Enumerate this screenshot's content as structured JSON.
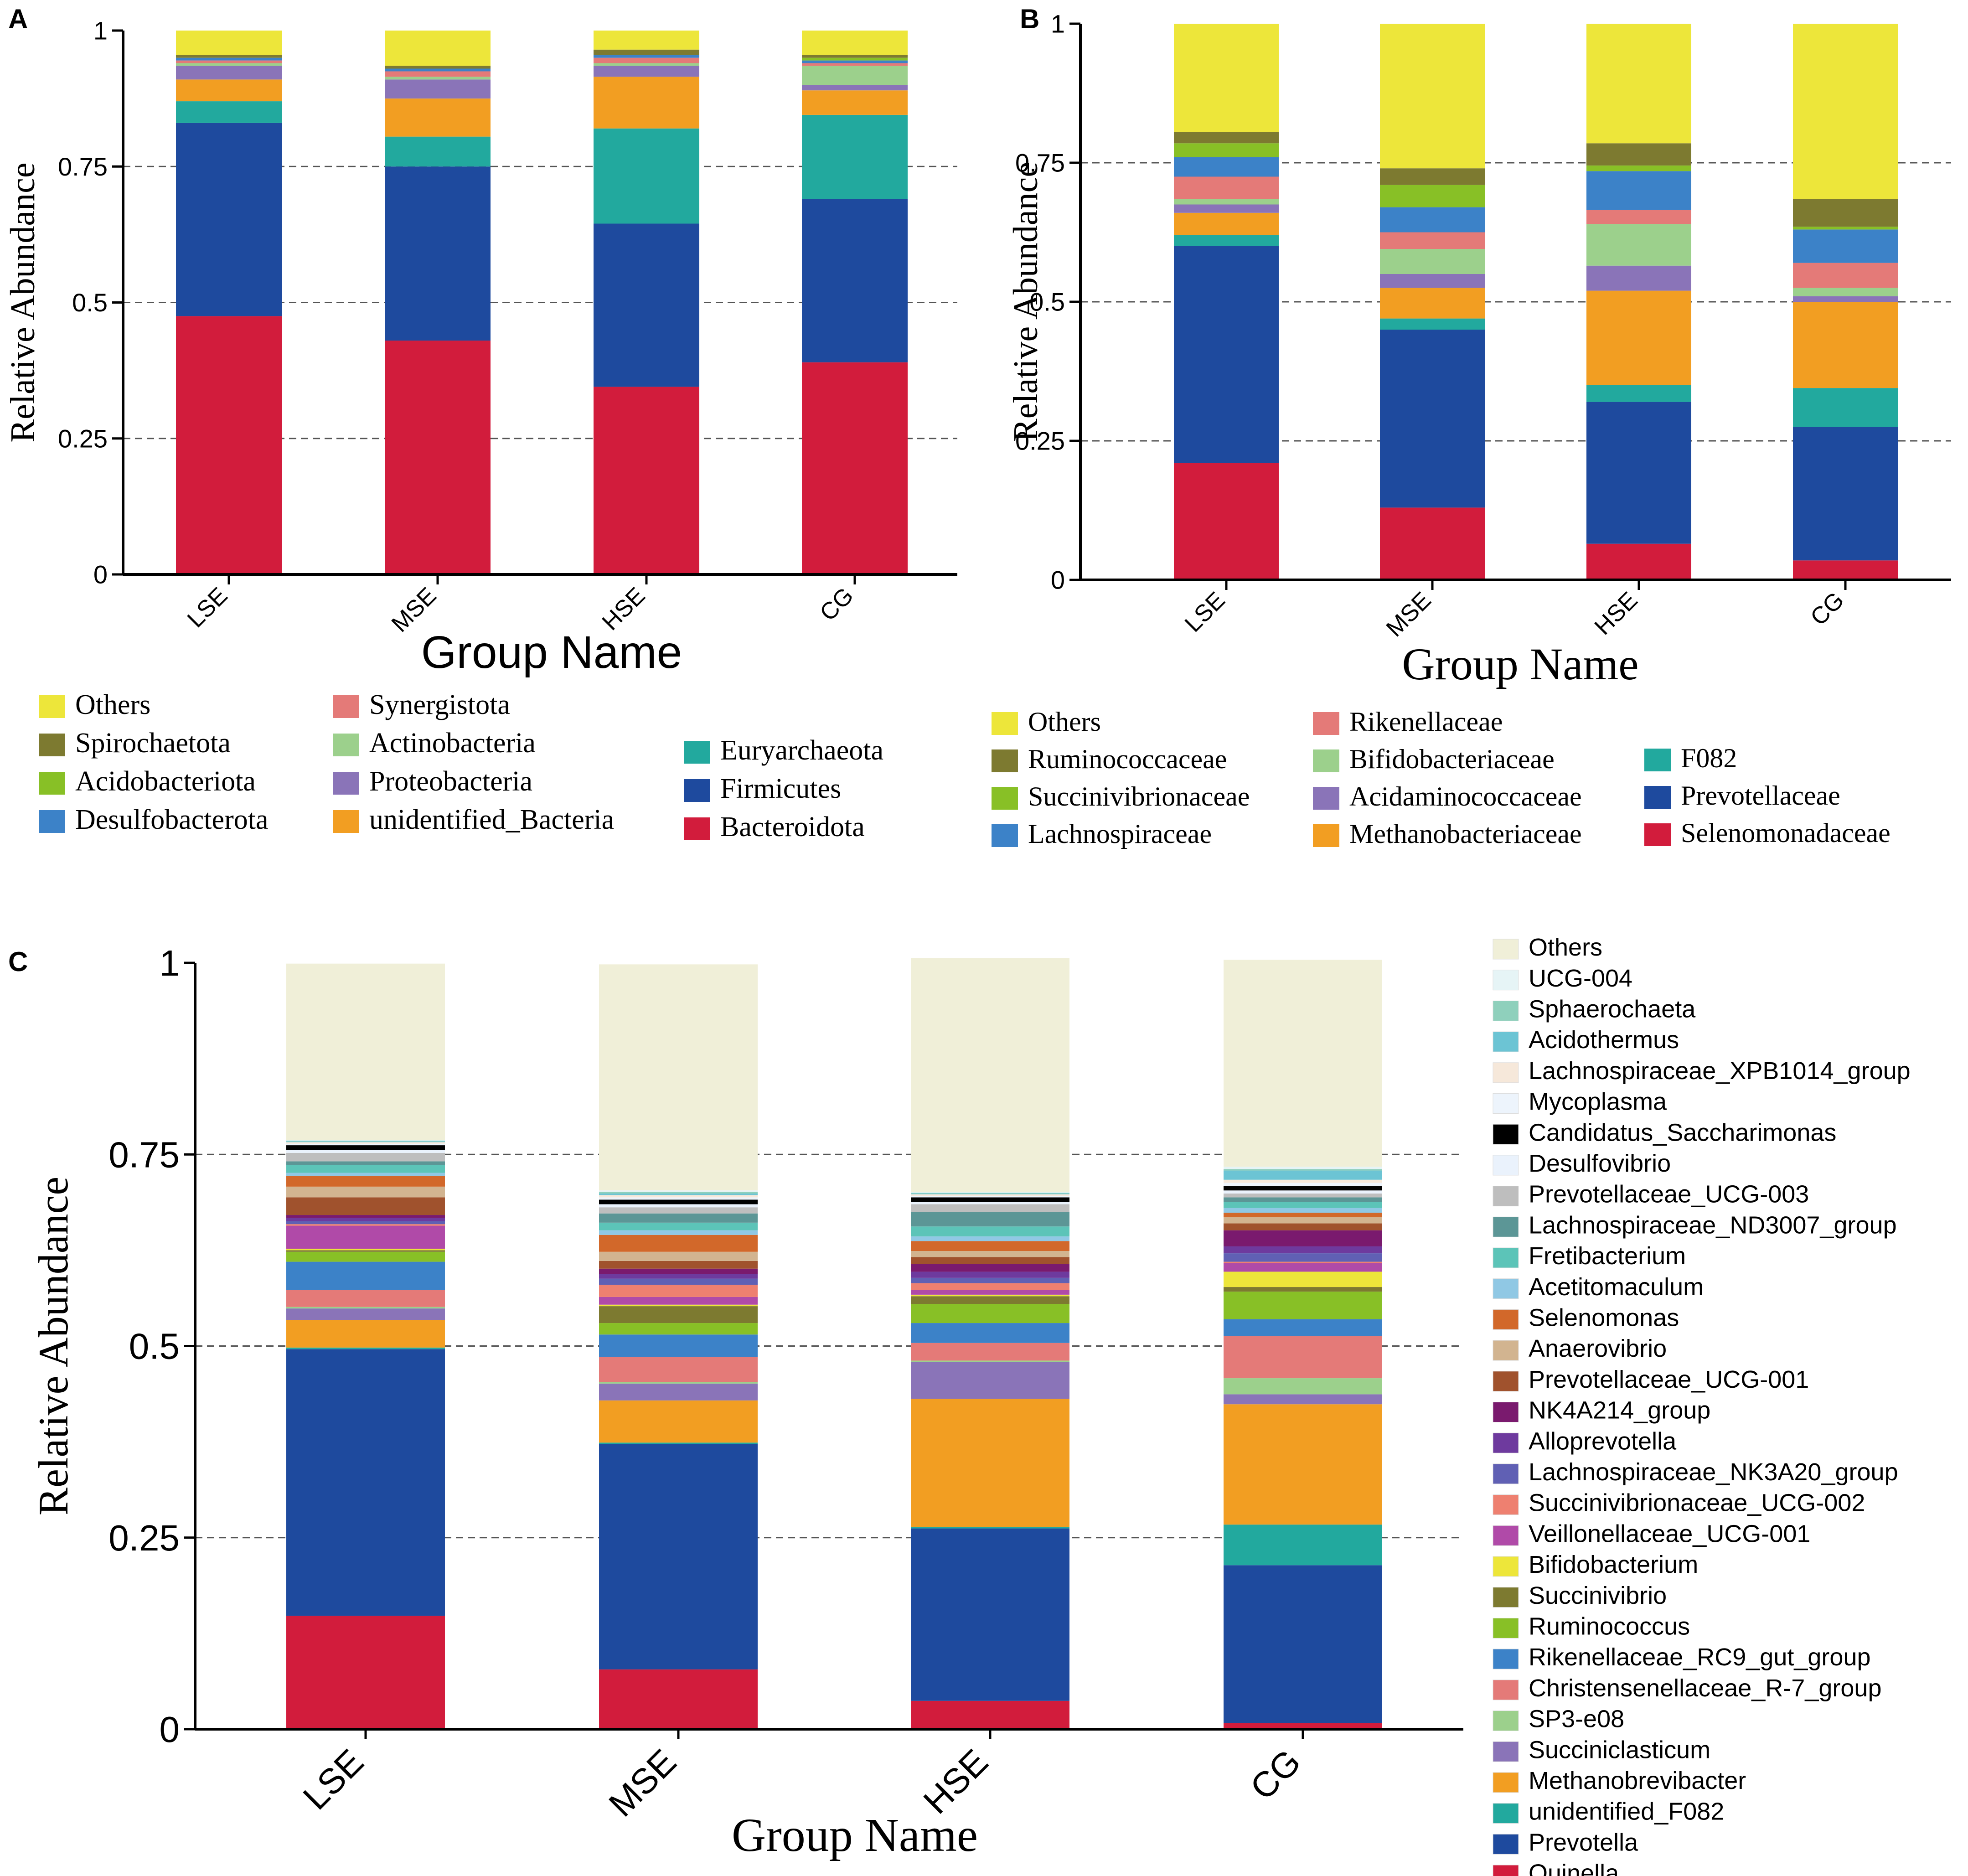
{
  "chart_data": [
    {
      "panel": "A",
      "type": "bar",
      "stacked": true,
      "categories": [
        "LSE",
        "MSE",
        "HSE",
        "CG"
      ],
      "xlabel": "Group Name",
      "ylabel": "Relative Abundance",
      "ylim": [
        0,
        1
      ],
      "yticks": [
        "0",
        "0.25",
        "0.5",
        "0.75",
        "1"
      ],
      "grid": "dashed-horizontal",
      "legend": [
        {
          "name": "Others",
          "color": "#EDE63A"
        },
        {
          "name": "Spirochaetota",
          "color": "#7D7A30"
        },
        {
          "name": "Acidobacteriota",
          "color": "#88C026"
        },
        {
          "name": "Desulfobacterota",
          "color": "#3C82C8"
        },
        {
          "name": "Synergistota",
          "color": "#E47A78"
        },
        {
          "name": "Actinobacteria",
          "color": "#9CD08C"
        },
        {
          "name": "Proteobacteria",
          "color": "#8A74B8"
        },
        {
          "name": "unidentified_Bacteria",
          "color": "#F29E22"
        },
        {
          "name": "Euryarchaeota",
          "color": "#22A99E"
        },
        {
          "name": "Firmicutes",
          "color": "#1E4A9E"
        },
        {
          "name": "Bacteroidota",
          "color": "#D21C3C"
        }
      ],
      "series": [
        {
          "name": "Bacteroidota",
          "color": "#D21C3C",
          "values": [
            0.475,
            0.43,
            0.345,
            0.39
          ]
        },
        {
          "name": "Firmicutes",
          "color": "#1E4A9E",
          "values": [
            0.355,
            0.32,
            0.3,
            0.3
          ]
        },
        {
          "name": "Euryarchaeota",
          "color": "#22A99E",
          "values": [
            0.04,
            0.055,
            0.175,
            0.155
          ]
        },
        {
          "name": "unidentified_Bacteria",
          "color": "#F29E22",
          "values": [
            0.04,
            0.07,
            0.095,
            0.045
          ]
        },
        {
          "name": "Proteobacteria",
          "color": "#8A74B8",
          "values": [
            0.025,
            0.035,
            0.02,
            0.01
          ]
        },
        {
          "name": "Actinobacteria",
          "color": "#9CD08C",
          "values": [
            0.005,
            0.005,
            0.005,
            0.035
          ]
        },
        {
          "name": "Synergistota",
          "color": "#E47A78",
          "values": [
            0.005,
            0.01,
            0.01,
            0.005
          ]
        },
        {
          "name": "Desulfobacterota",
          "color": "#3C82C8",
          "values": [
            0.005,
            0.005,
            0.005,
            0.005
          ]
        },
        {
          "name": "Acidobacteriota",
          "color": "#88C026",
          "values": [
            0.0,
            0.0,
            0.0,
            0.005
          ]
        },
        {
          "name": "Spirochaetota",
          "color": "#7D7A30",
          "values": [
            0.005,
            0.005,
            0.01,
            0.005
          ]
        },
        {
          "name": "Others",
          "color": "#EDE63A",
          "values": [
            0.045,
            0.065,
            0.035,
            0.045
          ]
        }
      ]
    },
    {
      "panel": "B",
      "type": "bar",
      "stacked": true,
      "categories": [
        "LSE",
        "MSE",
        "HSE",
        "CG"
      ],
      "xlabel": "Group Name",
      "ylabel": "Relative Abundance",
      "ylim": [
        0,
        1
      ],
      "yticks": [
        "0",
        "0.25",
        "0.5",
        "0.75",
        "1"
      ],
      "grid": "dashed-horizontal",
      "legend": [
        {
          "name": "Others",
          "color": "#EDE63A"
        },
        {
          "name": "Ruminococcaceae",
          "color": "#7D7A30"
        },
        {
          "name": "Succinivibrionaceae",
          "color": "#88C026"
        },
        {
          "name": "Lachnospiraceae",
          "color": "#3C82C8"
        },
        {
          "name": "Rikenellaceae",
          "color": "#E47A78"
        },
        {
          "name": "Bifidobacteriaceae",
          "color": "#9CD08C"
        },
        {
          "name": "Acidaminococcaceae",
          "color": "#8A74B8"
        },
        {
          "name": "Methanobacteriaceae",
          "color": "#F29E22"
        },
        {
          "name": "F082",
          "color": "#22A99E"
        },
        {
          "name": "Prevotellaceae",
          "color": "#1E4A9E"
        },
        {
          "name": "Selenomonadaceae",
          "color": "#D21C3C"
        }
      ],
      "series": [
        {
          "name": "Selenomonadaceae",
          "color": "#D21C3C",
          "values": [
            0.21,
            0.13,
            0.065,
            0.035
          ]
        },
        {
          "name": "Prevotellaceae",
          "color": "#1E4A9E",
          "values": [
            0.39,
            0.32,
            0.255,
            0.24
          ]
        },
        {
          "name": "F082",
          "color": "#22A99E",
          "values": [
            0.02,
            0.02,
            0.03,
            0.07
          ]
        },
        {
          "name": "Methanobacteriaceae",
          "color": "#F29E22",
          "values": [
            0.04,
            0.055,
            0.17,
            0.155
          ]
        },
        {
          "name": "Acidaminococcaceae",
          "color": "#8A74B8",
          "values": [
            0.015,
            0.025,
            0.045,
            0.01
          ]
        },
        {
          "name": "Bifidobacteriaceae",
          "color": "#9CD08C",
          "values": [
            0.01,
            0.045,
            0.075,
            0.015
          ]
        },
        {
          "name": "Rikenellaceae",
          "color": "#E47A78",
          "values": [
            0.04,
            0.03,
            0.025,
            0.045
          ]
        },
        {
          "name": "Lachnospiraceae",
          "color": "#3C82C8",
          "values": [
            0.035,
            0.045,
            0.07,
            0.06
          ]
        },
        {
          "name": "Succinivibrionaceae",
          "color": "#88C026",
          "values": [
            0.025,
            0.04,
            0.01,
            0.005
          ]
        },
        {
          "name": "Ruminococcaceae",
          "color": "#7D7A30",
          "values": [
            0.02,
            0.03,
            0.04,
            0.05
          ]
        },
        {
          "name": "Others",
          "color": "#EDE63A",
          "values": [
            0.195,
            0.26,
            0.215,
            0.315
          ]
        }
      ]
    },
    {
      "panel": "C",
      "type": "bar",
      "stacked": true,
      "categories": [
        "LSE",
        "MSE",
        "HSE",
        "CG"
      ],
      "xlabel": "Group Name",
      "ylabel": "Relative Abundance",
      "ylim": [
        0,
        1
      ],
      "yticks": [
        "0",
        "0.25",
        "0.5",
        "0.75",
        "1"
      ],
      "grid": "dashed-horizontal",
      "legend": [
        {
          "name": "Others",
          "color": "#F0EFD8"
        },
        {
          "name": "UCG-004",
          "color": "#E6F4F6"
        },
        {
          "name": "Sphaerochaeta",
          "color": "#8FD0BC"
        },
        {
          "name": "Acidothermus",
          "color": "#6CC4D4"
        },
        {
          "name": "Lachnospiraceae_XPB1014_group",
          "color": "#F6E8DA"
        },
        {
          "name": "Mycoplasma",
          "color": "#EDF4FC"
        },
        {
          "name": "Candidatus_Saccharimonas",
          "color": "#000000"
        },
        {
          "name": "Desulfovibrio",
          "color": "#EAF2FC"
        },
        {
          "name": "Prevotellaceae_UCG-003",
          "color": "#BEBEBE"
        },
        {
          "name": "Lachnospiraceae_ND3007_group",
          "color": "#5C9696"
        },
        {
          "name": "Fretibacterium",
          "color": "#5CC4B8"
        },
        {
          "name": "Acetitomaculum",
          "color": "#90C8E4"
        },
        {
          "name": "Selenomonas",
          "color": "#D2682A"
        },
        {
          "name": "Anaerovibrio",
          "color": "#D2B490"
        },
        {
          "name": "Prevotellaceae_UCG-001",
          "color": "#A0522D"
        },
        {
          "name": "NK4A214_group",
          "color": "#7A1A6E"
        },
        {
          "name": "Alloprevotella",
          "color": "#6E3A9E"
        },
        {
          "name": "Lachnospiraceae_NK3A20_group",
          "color": "#6060B4"
        },
        {
          "name": "Succinivibrionaceae_UCG-002",
          "color": "#EE8070"
        },
        {
          "name": "Veillonellaceae_UCG-001",
          "color": "#B04AA8"
        },
        {
          "name": "Bifidobacterium",
          "color": "#EDE63A"
        },
        {
          "name": "Succinivibrio",
          "color": "#7D7A30"
        },
        {
          "name": "Ruminococcus",
          "color": "#88C026"
        },
        {
          "name": "Rikenellaceae_RC9_gut_group",
          "color": "#3C82C8"
        },
        {
          "name": "Christensenellaceae_R-7_group",
          "color": "#E47A78"
        },
        {
          "name": "SP3-e08",
          "color": "#9CD08C"
        },
        {
          "name": "Succiniclasticum",
          "color": "#8A74B8"
        },
        {
          "name": "Methanobrevibacter",
          "color": "#F29E22"
        },
        {
          "name": "unidentified_F082",
          "color": "#22A99E"
        },
        {
          "name": "Prevotella",
          "color": "#1E4A9E"
        },
        {
          "name": "Quinella",
          "color": "#D21C3C"
        }
      ],
      "series": [
        {
          "name": "Quinella",
          "color": "#D21C3C",
          "values": [
            0.148,
            0.078,
            0.037,
            0.008
          ]
        },
        {
          "name": "Prevotella",
          "color": "#1E4A9E",
          "values": [
            0.348,
            0.294,
            0.225,
            0.206
          ]
        },
        {
          "name": "unidentified_F082",
          "color": "#22A99E",
          "values": [
            0.002,
            0.002,
            0.002,
            0.053
          ]
        },
        {
          "name": "Methanobrevibacter",
          "color": "#F29E22",
          "values": [
            0.036,
            0.055,
            0.167,
            0.157
          ]
        },
        {
          "name": "Succiniclasticum",
          "color": "#8A74B8",
          "values": [
            0.015,
            0.022,
            0.048,
            0.013
          ]
        },
        {
          "name": "SP3-e08",
          "color": "#9CD08C",
          "values": [
            0.002,
            0.002,
            0.002,
            0.021
          ]
        },
        {
          "name": "Christensenellaceae_R-7_group",
          "color": "#E47A78",
          "values": [
            0.022,
            0.033,
            0.023,
            0.055
          ]
        },
        {
          "name": "Rikenellaceae_RC9_gut_group",
          "color": "#3C82C8",
          "values": [
            0.037,
            0.029,
            0.026,
            0.022
          ]
        },
        {
          "name": "Ruminococcus",
          "color": "#88C026",
          "values": [
            0.013,
            0.015,
            0.025,
            0.036
          ]
        },
        {
          "name": "Succinivibrio",
          "color": "#7D7A30",
          "values": [
            0.002,
            0.022,
            0.01,
            0.006
          ]
        },
        {
          "name": "Bifidobacterium",
          "color": "#EDE63A",
          "values": [
            0.002,
            0.002,
            0.002,
            0.02
          ]
        },
        {
          "name": "Veillonellaceae_UCG-001",
          "color": "#B04AA8",
          "values": [
            0.03,
            0.01,
            0.006,
            0.011
          ]
        },
        {
          "name": "Succinivibrionaceae_UCG-002",
          "color": "#EE8070",
          "values": [
            0.002,
            0.016,
            0.009,
            0.002
          ]
        },
        {
          "name": "Lachnospiraceae_NK3A20_group",
          "color": "#6060B4",
          "values": [
            0.004,
            0.008,
            0.007,
            0.011
          ]
        },
        {
          "name": "Alloprevotella",
          "color": "#6E3A9E",
          "values": [
            0.004,
            0.006,
            0.008,
            0.009
          ]
        },
        {
          "name": "NK4A214_group",
          "color": "#7A1A6E",
          "values": [
            0.004,
            0.007,
            0.01,
            0.021
          ]
        },
        {
          "name": "Prevotellaceae_UCG-001",
          "color": "#A0522D",
          "values": [
            0.023,
            0.01,
            0.009,
            0.009
          ]
        },
        {
          "name": "Anaerovibrio",
          "color": "#D2B490",
          "values": [
            0.014,
            0.012,
            0.008,
            0.008
          ]
        },
        {
          "name": "Selenomonas",
          "color": "#D2682A",
          "values": [
            0.014,
            0.022,
            0.013,
            0.006
          ]
        },
        {
          "name": "Acetitomaculum",
          "color": "#90C8E4",
          "values": [
            0.004,
            0.006,
            0.006,
            0.006
          ]
        },
        {
          "name": "Fretibacterium",
          "color": "#5CC4B8",
          "values": [
            0.01,
            0.01,
            0.013,
            0.008
          ]
        },
        {
          "name": "Lachnospiraceae_ND3007_group",
          "color": "#5C9696",
          "values": [
            0.005,
            0.012,
            0.019,
            0.006
          ]
        },
        {
          "name": "Prevotellaceae_UCG-003",
          "color": "#BEBEBE",
          "values": [
            0.011,
            0.008,
            0.01,
            0.005
          ]
        },
        {
          "name": "Desulfovibrio",
          "color": "#EAF2FC",
          "values": [
            0.004,
            0.004,
            0.003,
            0.004
          ]
        },
        {
          "name": "Candidatus_Saccharimonas",
          "color": "#000000",
          "values": [
            0.006,
            0.006,
            0.006,
            0.006
          ]
        },
        {
          "name": "Mycoplasma",
          "color": "#EDF4FC",
          "values": [
            0.002,
            0.003,
            0.002,
            0.004
          ]
        },
        {
          "name": "Lachnospiraceae_XPB1014_group",
          "color": "#F6E8DA",
          "values": [
            0.002,
            0.003,
            0.002,
            0.004
          ]
        },
        {
          "name": "Acidothermus",
          "color": "#6CC4D4",
          "values": [
            0.001,
            0.002,
            0.001,
            0.012
          ]
        },
        {
          "name": "Sphaerochaeta",
          "color": "#8FD0BC",
          "values": [
            0.001,
            0.002,
            0.001,
            0.002
          ]
        },
        {
          "name": "UCG-004",
          "color": "#E6F4F6",
          "values": [
            0.001,
            0.002,
            0.001,
            0.003
          ]
        },
        {
          "name": "Others",
          "color": "#F0EFD8",
          "values": [
            0.23,
            0.295,
            0.305,
            0.27
          ]
        }
      ]
    }
  ]
}
